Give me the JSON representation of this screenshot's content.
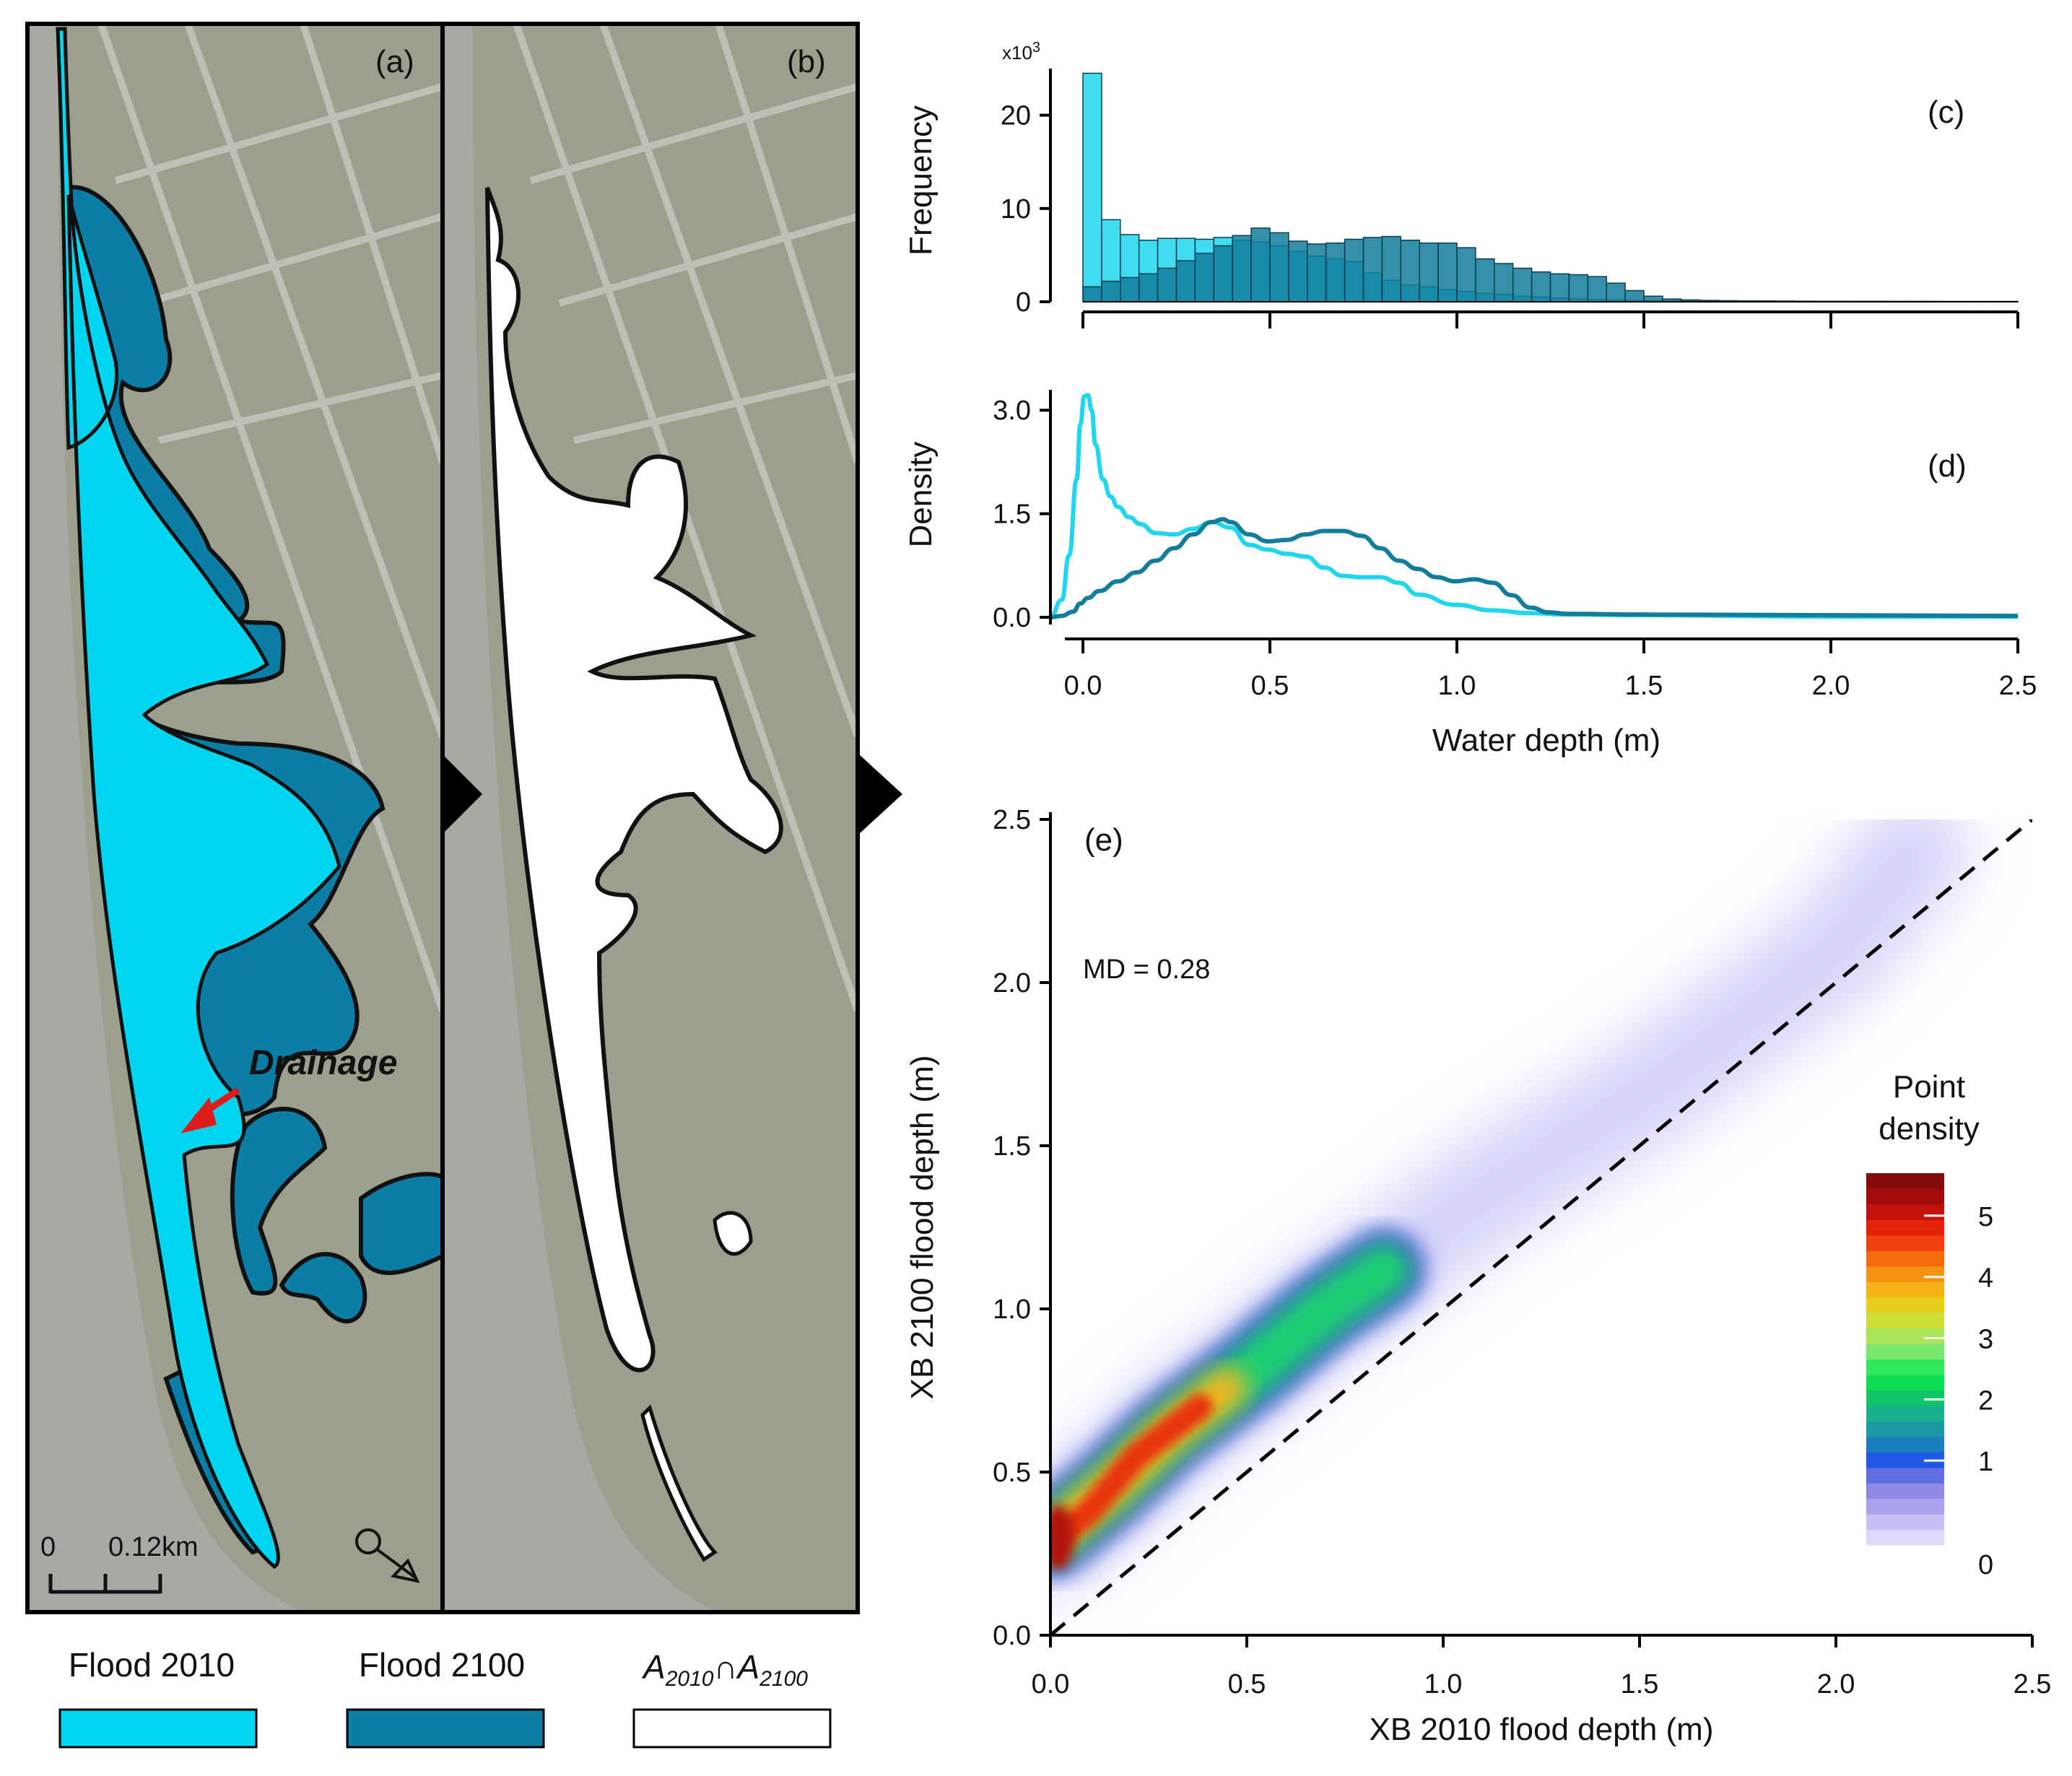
{
  "panels": {
    "a": "(a)",
    "b": "(b)",
    "c": "(c)",
    "d": "(d)",
    "e": "(e)"
  },
  "map": {
    "scale_start": "0",
    "scale_end": "0.12km",
    "annotation": "Drainage",
    "annotation_color": "#e01b1b",
    "background_color": "#9aa08c",
    "channel_color": "#a7a9a4"
  },
  "legend": {
    "items": [
      {
        "label": "Flood 2010",
        "color": "#00d5f0"
      },
      {
        "label": "Flood 2100",
        "color": "#0a7ea6"
      },
      {
        "label": "A",
        "sub1": "2010",
        "mid": "∩A",
        "sub2": "2100",
        "color": "#ffffff"
      }
    ]
  },
  "colors": {
    "light": "#1fd6ee",
    "dark": "#127d9b",
    "diagonal": "#000000"
  },
  "chart_data": [
    {
      "id": "c",
      "type": "bar",
      "ylabel": "Frequency",
      "exponent_base": "x10",
      "exponent_power": "3",
      "xlim": [
        0,
        2.5
      ],
      "ylim": [
        0,
        25
      ],
      "yticks": [
        0,
        10,
        20
      ],
      "xticks": [
        0,
        0.5,
        1.0,
        1.5,
        2.0,
        2.5
      ],
      "bin_width": 0.05,
      "series": [
        {
          "name": "Flood 2010",
          "values": [
            24.5,
            8.8,
            7.2,
            6.6,
            6.8,
            6.8,
            6.7,
            6.9,
            6.6,
            6.4,
            6.0,
            5.4,
            4.9,
            4.6,
            4.3,
            3.1,
            2.3,
            1.8,
            1.6,
            1.3,
            1.1,
            0.9,
            0.8,
            0.6,
            0.5,
            0.4,
            0.3,
            0.25,
            0.2,
            0.15,
            0.12,
            0.1,
            0.08,
            0.07,
            0.06,
            0.05,
            0.05,
            0.04,
            0.04,
            0.03,
            0.03,
            0.03,
            0.03,
            0.02,
            0.02,
            0.02,
            0.02,
            0.02,
            0.02,
            0.02
          ]
        },
        {
          "name": "Flood 2100",
          "values": [
            1.6,
            2.2,
            2.6,
            3.0,
            3.6,
            4.4,
            5.2,
            6.0,
            7.1,
            7.9,
            7.4,
            6.5,
            6.2,
            6.3,
            6.7,
            6.9,
            7.0,
            6.6,
            6.3,
            6.3,
            5.8,
            4.6,
            4.1,
            3.6,
            3.2,
            3.0,
            2.9,
            2.7,
            2.0,
            1.2,
            0.6,
            0.3,
            0.2,
            0.15,
            0.12,
            0.1,
            0.1,
            0.08,
            0.07,
            0.06,
            0.06,
            0.05,
            0.05,
            0.05,
            0.05,
            0.05,
            0.04,
            0.04,
            0.04,
            0.04
          ]
        }
      ]
    },
    {
      "id": "d",
      "type": "line",
      "ylabel": "Density",
      "xlabel": "Water depth (m)",
      "xlim": [
        -0.08,
        2.5
      ],
      "ylim": [
        0,
        3.4
      ],
      "yticks": [
        "0.0",
        "1.5",
        "3.0"
      ],
      "xticks": [
        "0.0",
        "0.5",
        "1.0",
        "1.5",
        "2.0",
        "2.5"
      ],
      "series": [
        {
          "name": "Flood 2010",
          "x": [
            -0.08,
            -0.05,
            -0.03,
            -0.01,
            0.0,
            0.01,
            0.02,
            0.03,
            0.04,
            0.06,
            0.08,
            0.1,
            0.13,
            0.16,
            0.2,
            0.25,
            0.3,
            0.35,
            0.4,
            0.45,
            0.5,
            0.55,
            0.6,
            0.65,
            0.7,
            0.75,
            0.8,
            0.85,
            0.9,
            1.0,
            1.1,
            1.2,
            1.3,
            1.5,
            2.0,
            2.5
          ],
          "y": [
            0.0,
            0.25,
            0.9,
            2.0,
            2.8,
            3.2,
            3.22,
            3.0,
            2.5,
            2.0,
            1.75,
            1.6,
            1.45,
            1.35,
            1.22,
            1.2,
            1.28,
            1.38,
            1.3,
            1.05,
            0.98,
            0.92,
            0.88,
            0.72,
            0.6,
            0.58,
            0.58,
            0.5,
            0.33,
            0.18,
            0.1,
            0.06,
            0.04,
            0.03,
            0.01,
            0.01
          ]
        },
        {
          "name": "Flood 2100",
          "x": [
            -0.08,
            -0.05,
            -0.02,
            0.0,
            0.02,
            0.05,
            0.1,
            0.15,
            0.2,
            0.25,
            0.3,
            0.35,
            0.38,
            0.4,
            0.45,
            0.5,
            0.55,
            0.6,
            0.65,
            0.7,
            0.75,
            0.8,
            0.85,
            0.9,
            0.95,
            1.0,
            1.05,
            1.1,
            1.15,
            1.2,
            1.25,
            1.3,
            1.5,
            2.0,
            2.5
          ],
          "y": [
            0.0,
            0.02,
            0.08,
            0.2,
            0.28,
            0.38,
            0.52,
            0.65,
            0.82,
            1.0,
            1.2,
            1.38,
            1.42,
            1.38,
            1.2,
            1.1,
            1.12,
            1.2,
            1.25,
            1.25,
            1.18,
            1.0,
            0.82,
            0.7,
            0.58,
            0.52,
            0.55,
            0.5,
            0.32,
            0.14,
            0.07,
            0.05,
            0.04,
            0.03,
            0.02
          ]
        }
      ]
    },
    {
      "id": "e",
      "type": "heatmap",
      "xlabel": "XB 2010 flood depth (m)",
      "ylabel": "XB 2100 flood depth (m)",
      "xlim": [
        0,
        2.5
      ],
      "ylim": [
        0,
        2.5
      ],
      "xticks": [
        "0.0",
        "0.5",
        "1.0",
        "1.5",
        "2.0",
        "2.5"
      ],
      "yticks": [
        "0.0",
        "0.5",
        "1.0",
        "1.5",
        "2.0",
        "2.5"
      ],
      "annotation": "MD = 0.28",
      "reference_line": "y = x",
      "ridge": {
        "x": [
          0.0,
          0.15,
          0.3,
          0.5,
          0.7,
          0.85,
          1.1,
          1.5,
          2.0,
          2.2
        ],
        "y": [
          0.3,
          0.45,
          0.62,
          0.8,
          1.0,
          1.12,
          1.35,
          1.65,
          2.1,
          2.4
        ]
      },
      "colorbar": {
        "title_line1": "Point",
        "title_line2": "density",
        "ticks": [
          "0",
          "1",
          "2",
          "3",
          "4",
          "5"
        ],
        "colors": [
          "#ddd9fa",
          "#c7c0f5",
          "#aaa2ef",
          "#8f89e6",
          "#5f6fe0",
          "#1f57e8",
          "#1a7dc0",
          "#1b9aa6",
          "#16b08a",
          "#10c567",
          "#0fdc55",
          "#2fe85a",
          "#7ae86e",
          "#a8e658",
          "#cde038",
          "#e6cf1c",
          "#f4b214",
          "#f79210",
          "#f56a0d",
          "#ef420c",
          "#e3220b",
          "#c4120a",
          "#a20d09",
          "#860c0b"
        ]
      }
    }
  ]
}
